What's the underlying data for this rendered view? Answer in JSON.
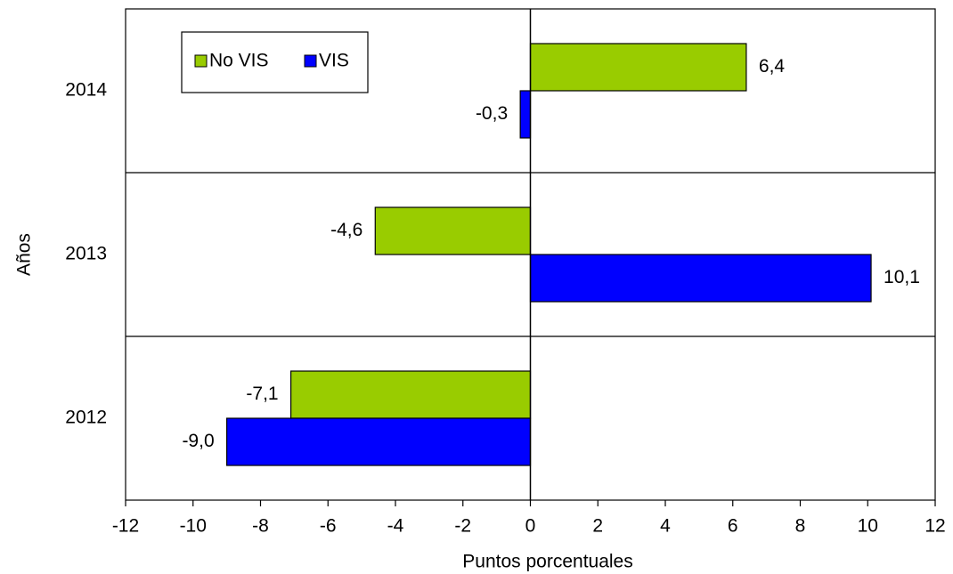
{
  "chart_data": {
    "type": "hbar",
    "y_label": "Años",
    "x_label": "Puntos porcentuales",
    "categories": [
      "2012",
      "2013",
      "2014"
    ],
    "series": [
      {
        "name": "No VIS",
        "color": "#99cc00",
        "values": [
          -7.1,
          -4.6,
          6.4
        ],
        "value_labels": [
          "-7,1",
          "-4,6",
          "6,4"
        ]
      },
      {
        "name": "VIS",
        "color": "#0000ff",
        "values": [
          -9.0,
          10.1,
          -0.3
        ],
        "value_labels": [
          "-9,0",
          "10,1",
          "-0,3"
        ]
      }
    ],
    "xlim": [
      -12,
      12
    ],
    "xticks": [
      -12,
      -10,
      -8,
      -6,
      -4,
      -2,
      0,
      2,
      4,
      6,
      8,
      10,
      12
    ]
  }
}
